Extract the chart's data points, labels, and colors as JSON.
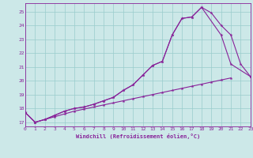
{
  "xlabel": "Windchill (Refroidissement éolien,°C)",
  "bg_color": "#cce8e8",
  "grid_color": "#99cccc",
  "line_color": "#882299",
  "xlim": [
    0,
    23
  ],
  "ylim": [
    16.7,
    25.6
  ],
  "yticks": [
    17,
    18,
    19,
    20,
    21,
    22,
    23,
    24,
    25
  ],
  "xticks": [
    0,
    1,
    2,
    3,
    4,
    5,
    6,
    7,
    8,
    9,
    10,
    11,
    12,
    13,
    14,
    15,
    16,
    17,
    18,
    19,
    20,
    21,
    22,
    23
  ],
  "series1_x": [
    0,
    1,
    2,
    3,
    4,
    5,
    6,
    7,
    8,
    9,
    10,
    11,
    12,
    13,
    14,
    15,
    16,
    17,
    18,
    19,
    20,
    21,
    22,
    23
  ],
  "series1_y": [
    17.7,
    17.0,
    17.2,
    17.4,
    17.6,
    17.8,
    17.95,
    18.1,
    18.25,
    18.4,
    18.55,
    18.7,
    18.85,
    19.0,
    19.15,
    19.3,
    19.45,
    19.6,
    19.75,
    19.9,
    20.05,
    20.2,
    null,
    null
  ],
  "series2_x": [
    0,
    1,
    2,
    3,
    4,
    5,
    6,
    7,
    8,
    9,
    10,
    11,
    12,
    13,
    14,
    15,
    16,
    17,
    18,
    19,
    20,
    21,
    22,
    23
  ],
  "series2_y": [
    17.7,
    17.0,
    17.2,
    17.5,
    17.8,
    18.0,
    18.1,
    18.3,
    18.55,
    18.8,
    19.3,
    19.7,
    20.4,
    21.1,
    21.4,
    23.3,
    24.5,
    24.6,
    25.3,
    24.9,
    24.0,
    23.3,
    21.2,
    20.3
  ],
  "series3_x": [
    0,
    1,
    2,
    3,
    4,
    5,
    6,
    7,
    8,
    9,
    10,
    11,
    12,
    13,
    14,
    15,
    16,
    17,
    18,
    20,
    21,
    23
  ],
  "series3_y": [
    17.7,
    17.0,
    17.2,
    17.5,
    17.8,
    18.0,
    18.1,
    18.3,
    18.55,
    18.8,
    19.3,
    19.7,
    20.4,
    21.1,
    21.4,
    23.3,
    24.5,
    24.6,
    25.3,
    23.3,
    21.2,
    20.3
  ]
}
